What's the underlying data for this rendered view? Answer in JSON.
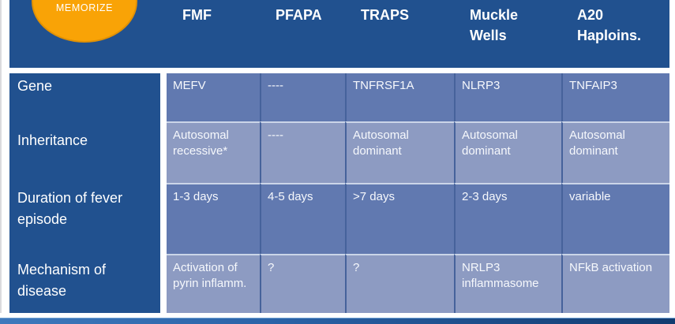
{
  "badge": {
    "label": "MEMORIZE"
  },
  "table": {
    "columns": [
      "FMF",
      "PFAPA",
      "TRAPS",
      "Muckle\nWells",
      "A20\nHaploins."
    ],
    "rows": [
      {
        "label": "Gene",
        "values": [
          "MEFV",
          "----",
          "TNFRSF1A",
          "NLRP3",
          "TNFAIP3"
        ]
      },
      {
        "label": "Inheritance",
        "values": [
          "Autosomal recessive*",
          "----",
          "Autosomal dominant",
          "Autosomal dominant",
          "Autosomal dominant"
        ]
      },
      {
        "label": "Duration of fever episode",
        "values": [
          "1-3 days",
          "4-5 days",
          ">7 days",
          "2-3 days",
          "variable"
        ]
      },
      {
        "label": "Mechanism of disease",
        "values": [
          "Activation of pyrin inflamm.",
          "?",
          "?",
          "NRLP3 inflammasome",
          "NFkB activation"
        ]
      }
    ]
  },
  "colors": {
    "header_blue": "#21518F",
    "row_band_dark": "#6179B0",
    "row_band_light": "#8D9BC2",
    "badge_orange": "#F9A306",
    "accent_bar_left": "#3E79BC",
    "accent_bar_right": "#123B70"
  }
}
